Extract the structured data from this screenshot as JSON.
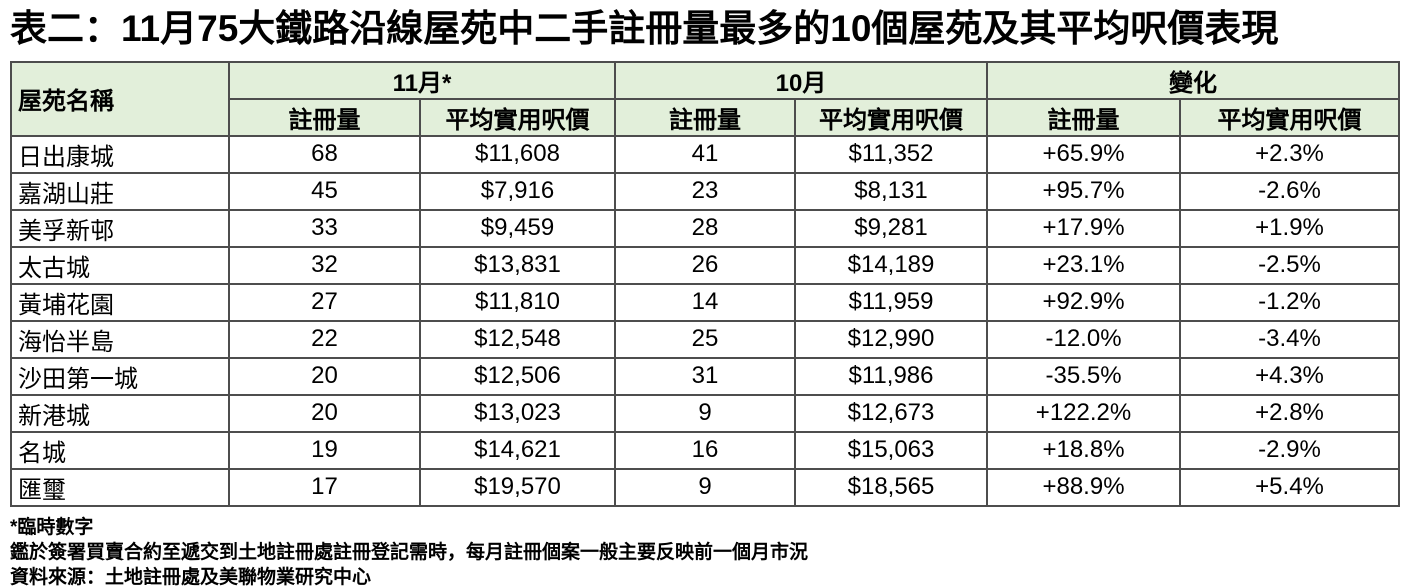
{
  "title": "表二：11月75大鐵路沿線屋苑中二手註冊量最多的10個屋苑及其平均呎價表現",
  "table": {
    "corner_header": "屋苑名稱",
    "groups": [
      {
        "label": "11月*",
        "sub": [
          "註冊量",
          "平均實用呎價"
        ]
      },
      {
        "label": "10月",
        "sub": [
          "註冊量",
          "平均實用呎價"
        ]
      },
      {
        "label": "變化",
        "sub": [
          "註冊量",
          "平均實用呎價"
        ]
      }
    ],
    "rows": [
      {
        "name": "日出康城",
        "nov_count": "68",
        "nov_price": "$11,608",
        "oct_count": "41",
        "oct_price": "$11,352",
        "chg_count": "+65.9%",
        "chg_price": "+2.3%"
      },
      {
        "name": "嘉湖山莊",
        "nov_count": "45",
        "nov_price": "$7,916",
        "oct_count": "23",
        "oct_price": "$8,131",
        "chg_count": "+95.7%",
        "chg_price": "-2.6%"
      },
      {
        "name": "美孚新邨",
        "nov_count": "33",
        "nov_price": "$9,459",
        "oct_count": "28",
        "oct_price": "$9,281",
        "chg_count": "+17.9%",
        "chg_price": "+1.9%"
      },
      {
        "name": "太古城",
        "nov_count": "32",
        "nov_price": "$13,831",
        "oct_count": "26",
        "oct_price": "$14,189",
        "chg_count": "+23.1%",
        "chg_price": "-2.5%"
      },
      {
        "name": "黃埔花園",
        "nov_count": "27",
        "nov_price": "$11,810",
        "oct_count": "14",
        "oct_price": "$11,959",
        "chg_count": "+92.9%",
        "chg_price": "-1.2%"
      },
      {
        "name": "海怡半島",
        "nov_count": "22",
        "nov_price": "$12,548",
        "oct_count": "25",
        "oct_price": "$12,990",
        "chg_count": "-12.0%",
        "chg_price": "-3.4%"
      },
      {
        "name": "沙田第一城",
        "nov_count": "20",
        "nov_price": "$12,506",
        "oct_count": "31",
        "oct_price": "$11,986",
        "chg_count": "-35.5%",
        "chg_price": "+4.3%"
      },
      {
        "name": "新港城",
        "nov_count": "20",
        "nov_price": "$13,023",
        "oct_count": "9",
        "oct_price": "$12,673",
        "chg_count": "+122.2%",
        "chg_price": "+2.8%"
      },
      {
        "name": "名城",
        "nov_count": "19",
        "nov_price": "$14,621",
        "oct_count": "16",
        "oct_price": "$15,063",
        "chg_count": "+18.8%",
        "chg_price": "-2.9%"
      },
      {
        "name": "匯璽",
        "nov_count": "17",
        "nov_price": "$19,570",
        "oct_count": "9",
        "oct_price": "$18,565",
        "chg_count": "+88.9%",
        "chg_price": "+5.4%"
      }
    ]
  },
  "footnotes": [
    "*臨時數字",
    "鑑於簽署買賣合約至遞交到土地註冊處註冊登記需時，每月註冊個案一般主要反映前一個月市況",
    "資料來源：土地註冊處及美聯物業研究中心"
  ],
  "colors": {
    "header_bg": "#e2efda",
    "border": "#4d4d4d",
    "text": "#000000"
  }
}
